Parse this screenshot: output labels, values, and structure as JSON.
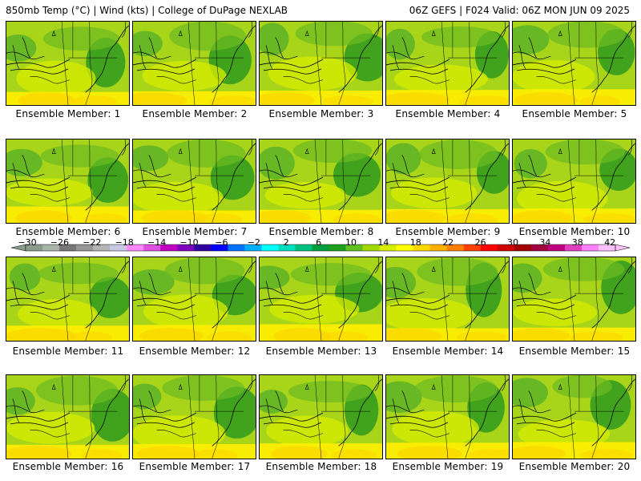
{
  "header": {
    "left": "850mb Temp (°C) | Wind (kts) | College of DuPage NEXLAB",
    "right": "06Z GEFS | F024 Valid: 06Z MON JUN 09 2025"
  },
  "members": [
    {
      "label": "Ensemble Member: 1"
    },
    {
      "label": "Ensemble Member: 2"
    },
    {
      "label": "Ensemble Member: 3"
    },
    {
      "label": "Ensemble Member: 4"
    },
    {
      "label": "Ensemble Member: 5"
    },
    {
      "label": "Ensemble Member: 6"
    },
    {
      "label": "Ensemble Member: 7"
    },
    {
      "label": "Ensemble Member: 8"
    },
    {
      "label": "Ensemble Member: 9"
    },
    {
      "label": "Ensemble Member: 10"
    },
    {
      "label": "Ensemble Member: 11"
    },
    {
      "label": "Ensemble Member: 12"
    },
    {
      "label": "Ensemble Member: 13"
    },
    {
      "label": "Ensemble Member: 14"
    },
    {
      "label": "Ensemble Member: 15"
    },
    {
      "label": "Ensemble Member: 16"
    },
    {
      "label": "Ensemble Member: 17"
    },
    {
      "label": "Ensemble Member: 18"
    },
    {
      "label": "Ensemble Member: 19"
    },
    {
      "label": "Ensemble Member: 20"
    }
  ],
  "colorbar": {
    "tick_labels": [
      "−30",
      "−26",
      "−22",
      "−18",
      "−14",
      "−10",
      "−6",
      "−2",
      "2",
      "6",
      "10",
      "14",
      "18",
      "22",
      "26",
      "30",
      "34",
      "38",
      "42"
    ],
    "colors": [
      "#8c9c8c",
      "#a8b4a8",
      "#787878",
      "#969696",
      "#b4b4b4",
      "#c8c8e6",
      "#ff88ff",
      "#e050e0",
      "#c000c0",
      "#8000c0",
      "#3000a0",
      "#0000ff",
      "#0070ff",
      "#00b0ff",
      "#00ffff",
      "#00e0c0",
      "#00c080",
      "#00a040",
      "#20a020",
      "#60c020",
      "#a0d800",
      "#d8ee00",
      "#ffff00",
      "#ffd800",
      "#ffb000",
      "#ff8000",
      "#ff4000",
      "#ff0000",
      "#d00000",
      "#a00000",
      "#a00040",
      "#c00080",
      "#e040c0",
      "#ff80ff",
      "#ffc0ff"
    ]
  }
}
